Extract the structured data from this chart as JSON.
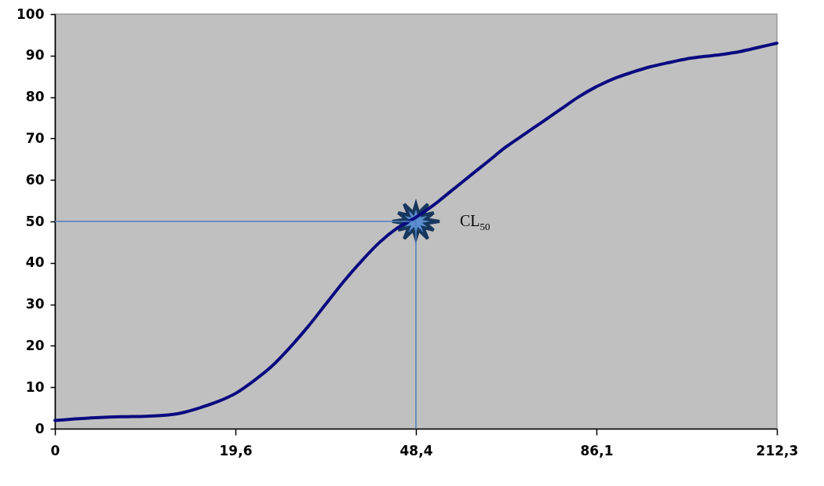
{
  "chart_data": {
    "type": "line",
    "categories": [
      "0",
      null,
      null,
      null,
      null,
      null,
      null,
      null,
      null,
      null,
      "19,6",
      null,
      null,
      null,
      null,
      null,
      null,
      null,
      null,
      null,
      "48,4",
      null,
      null,
      null,
      null,
      null,
      null,
      null,
      null,
      null,
      "86,1",
      null,
      null,
      null,
      null,
      null,
      null,
      null,
      null,
      null,
      "212,3"
    ],
    "values": [
      2,
      2.3,
      2.6,
      2.8,
      2.9,
      3,
      3.2,
      3.8,
      5,
      6.5,
      8.5,
      11.5,
      15,
      19.5,
      24.5,
      30,
      35.5,
      40.5,
      45,
      48.5,
      51,
      54,
      57.5,
      61,
      64.5,
      68,
      71,
      74,
      77,
      80,
      82.5,
      84.5,
      86,
      87.3,
      88.3,
      89.2,
      89.8,
      90.3,
      91,
      92,
      93
    ],
    "color": "#0a0a80",
    "ylim": [
      0,
      100
    ],
    "yticks": [
      0,
      10,
      20,
      30,
      40,
      50,
      60,
      70,
      80,
      90,
      100
    ],
    "marker": "none",
    "line_style": "solid",
    "ref_lines": [
      {
        "axis": "y",
        "value": 50,
        "color": "#4f81bd"
      },
      {
        "axis": "x",
        "value": "48,4",
        "color": "#4f81bd"
      }
    ],
    "annotations": [
      {
        "text": "CL$_{50}$",
        "x": "48,4",
        "y": 50
      }
    ]
  }
}
